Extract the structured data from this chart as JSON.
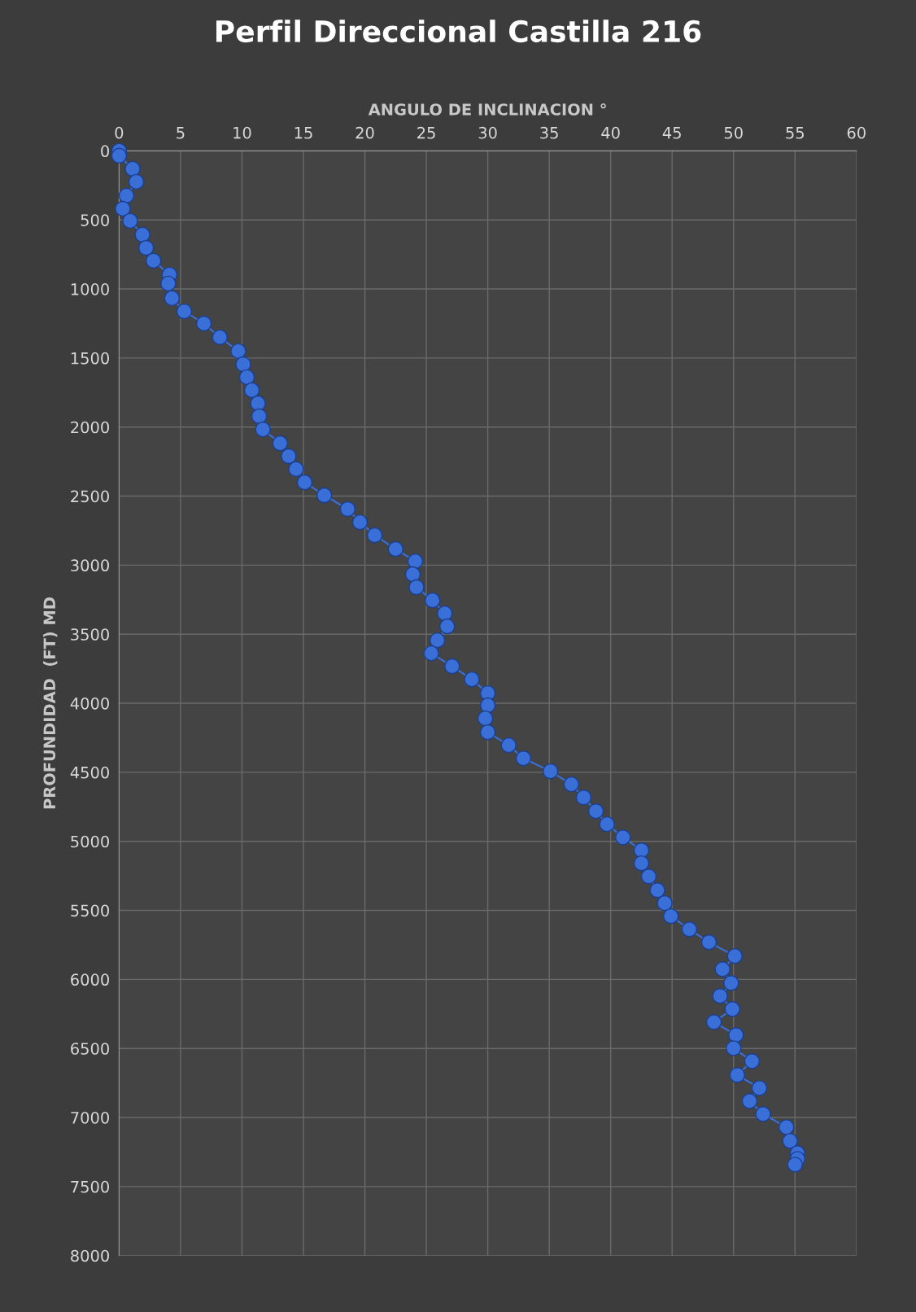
{
  "chart_data": {
    "type": "line",
    "title": "Perfil Direccional Castilla 216",
    "xlabel": "ANGULO DE INCLINACION °",
    "ylabel": "PROFUNDIDAD  (FT) MD",
    "x": [
      0,
      0,
      1.1,
      1.4,
      0.6,
      0.3,
      0.9,
      1.9,
      2.2,
      2.8,
      4.1,
      4.0,
      4.3,
      5.3,
      6.9,
      8.2,
      9.7,
      10.1,
      10.4,
      10.8,
      11.3,
      11.4,
      11.7,
      13.1,
      13.8,
      14.4,
      15.1,
      16.7,
      18.6,
      19.6,
      20.8,
      22.5,
      24.1,
      23.9,
      24.2,
      25.5,
      26.5,
      26.7,
      25.9,
      25.4,
      27.1,
      28.7,
      30.0,
      30.0,
      29.8,
      30.0,
      31.7,
      32.9,
      35.1,
      36.8,
      37.8,
      38.8,
      39.7,
      41.0,
      42.5,
      42.5,
      43.1,
      43.8,
      44.4,
      44.9,
      46.4,
      48.0,
      50.1,
      49.1,
      49.8,
      48.9,
      49.9,
      48.4,
      50.2,
      50.0,
      51.5,
      50.3,
      52.1,
      51.3,
      52.4,
      54.3,
      54.6,
      55.2,
      55.2,
      55.0
    ],
    "series": [
      {
        "color": "#3a6fd8",
        "values": [
          0,
          35,
          130,
          224,
          324,
          419,
          507,
          607,
          702,
          796,
          896,
          961,
          1067,
          1162,
          1250,
          1350,
          1450,
          1545,
          1639,
          1733,
          1828,
          1922,
          2017,
          2117,
          2211,
          2305,
          2400,
          2494,
          2594,
          2689,
          2783,
          2883,
          2972,
          3066,
          3160,
          3255,
          3349,
          3443,
          3544,
          3638,
          3732,
          3827,
          3927,
          4015,
          4110,
          4210,
          4304,
          4399,
          4493,
          4587,
          4682,
          4782,
          4876,
          4971,
          5065,
          5159,
          5254,
          5354,
          5448,
          5542,
          5637,
          5731,
          5831,
          5926,
          6026,
          6120,
          6215,
          6309,
          6403,
          6498,
          6592,
          6692,
          6787,
          6881,
          6975,
          7070,
          7170,
          7258,
          7300,
          7341
        ]
      }
    ],
    "xlim": [
      0,
      60
    ],
    "xticks": [
      0,
      5,
      10,
      15,
      20,
      25,
      30,
      35,
      40,
      45,
      50,
      55,
      60
    ],
    "ylim": [
      8000,
      0
    ],
    "yticks": [
      0,
      500,
      1000,
      1500,
      2000,
      2500,
      3000,
      3500,
      4000,
      4500,
      5000,
      5500,
      6000,
      6500,
      7000,
      7500,
      8000
    ],
    "grid": true,
    "marker": "circle",
    "line_style": "solid"
  }
}
